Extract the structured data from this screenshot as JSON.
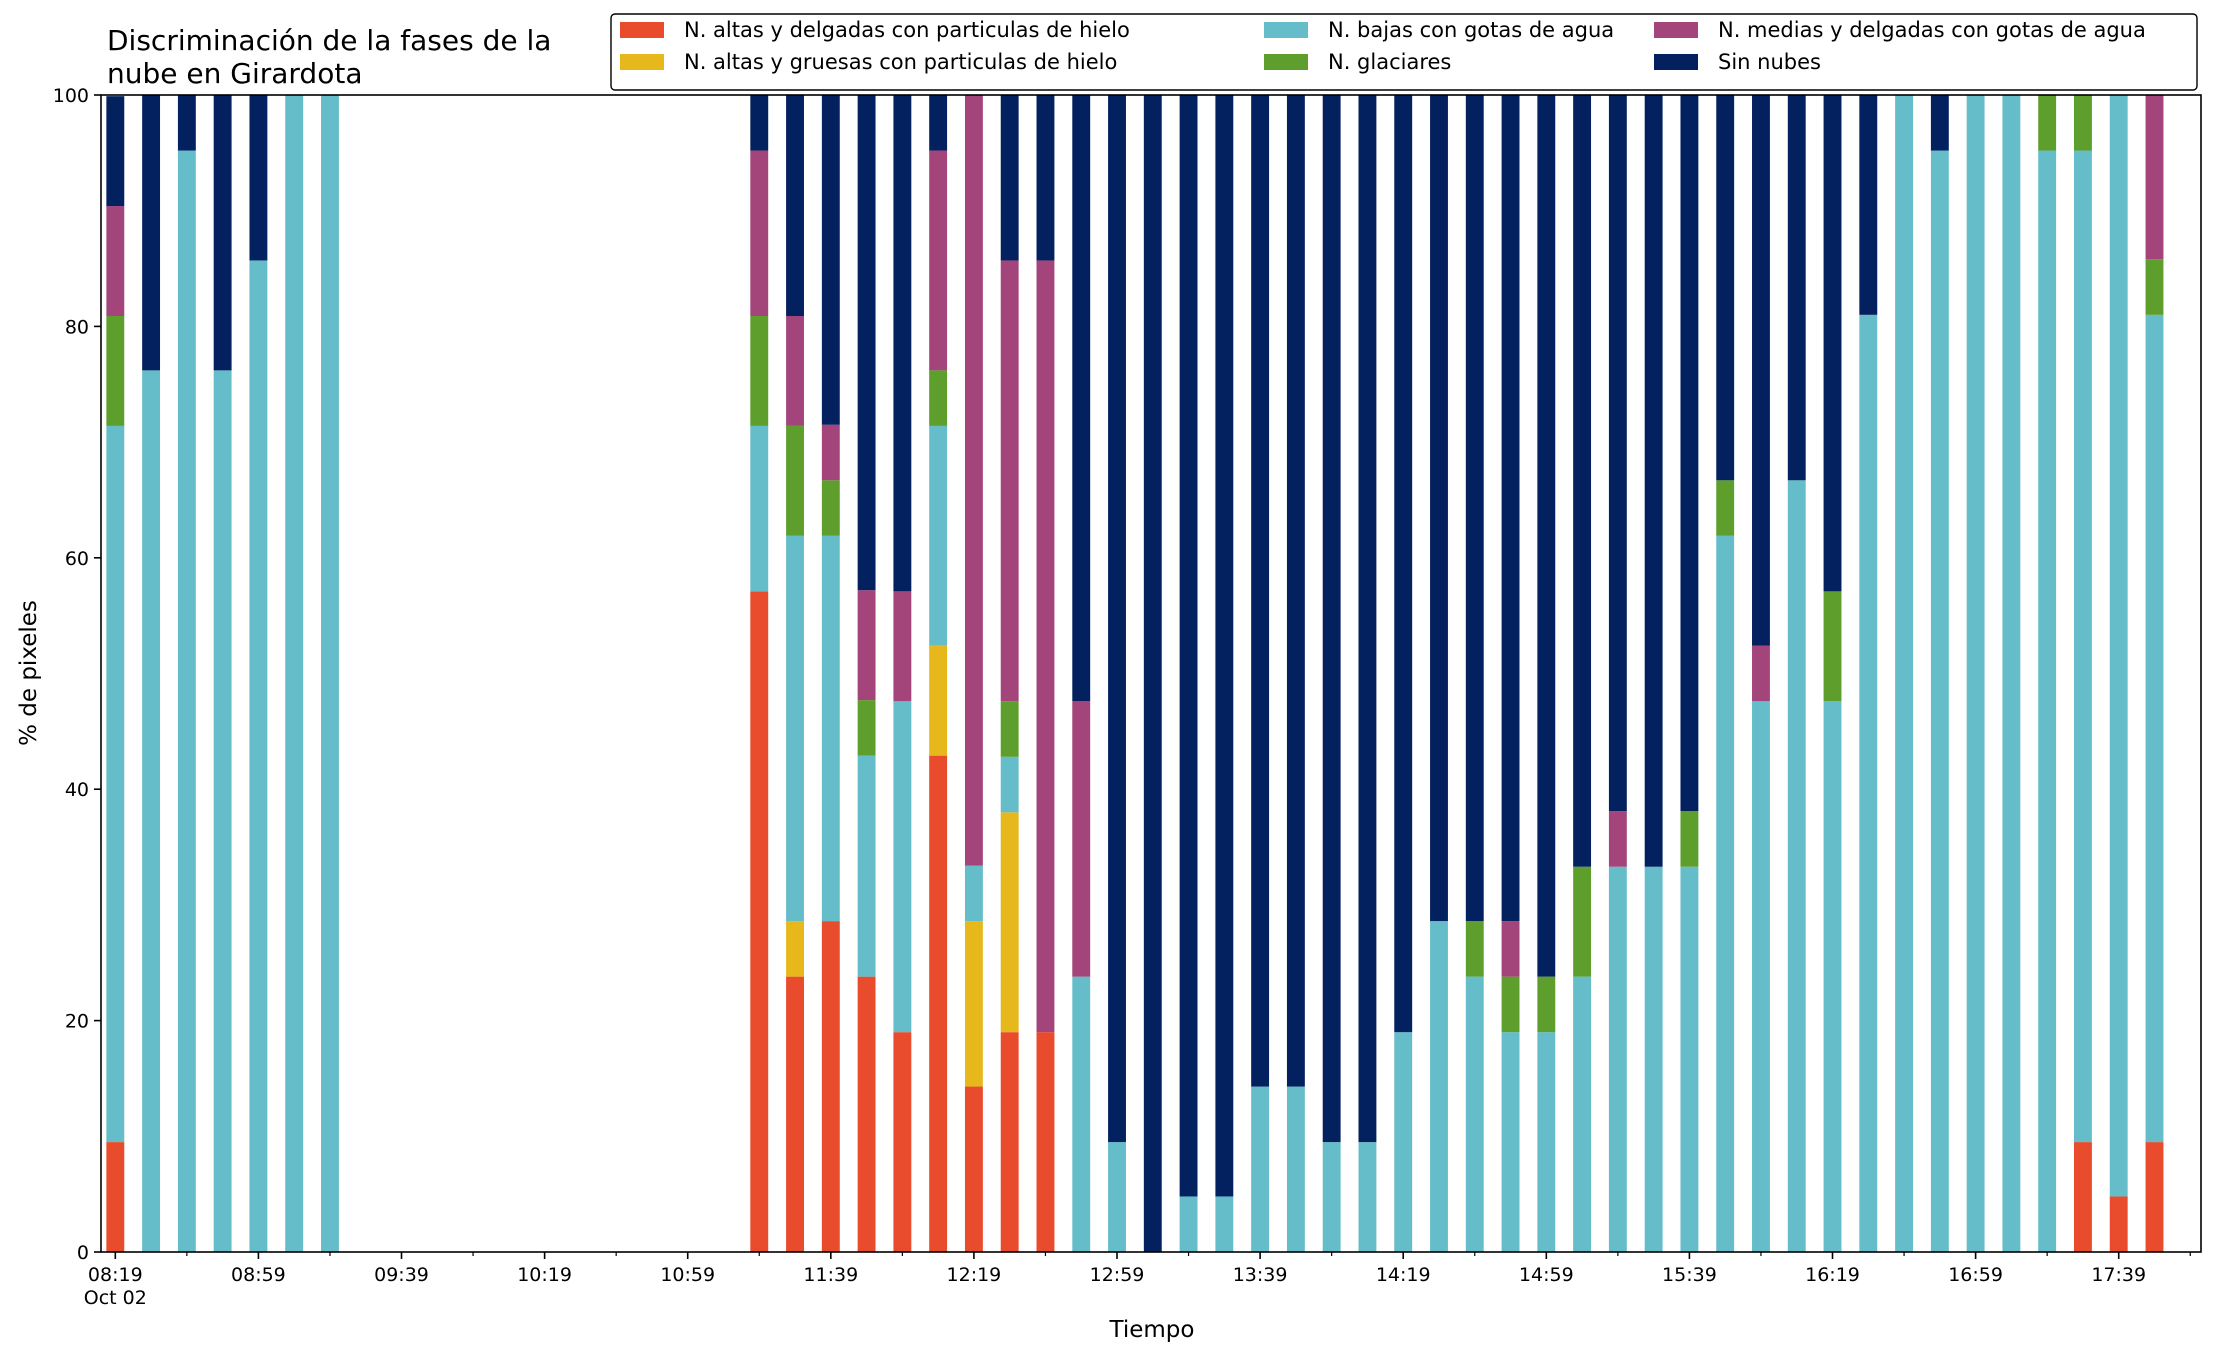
{
  "chart_data": {
    "type": "bar",
    "stacked": true,
    "title_lines": [
      "Discriminación de la fases de la",
      "nube en Girardota"
    ],
    "xlabel": "Tiempo",
    "ylabel": "% de pixeles",
    "ylim": [
      0,
      100
    ],
    "yticks": [
      "0",
      "20",
      "40",
      "60",
      "80",
      "100"
    ],
    "xlim_minutes": [
      495,
      1082
    ],
    "bar_step_minutes": 10,
    "bar_width_minutes": 5,
    "xtick_labels": [
      "08:19",
      "08:59",
      "09:39",
      "10:19",
      "10:59",
      "11:39",
      "12:19",
      "12:59",
      "13:39",
      "14:19",
      "14:59",
      "15:39",
      "16:19",
      "16:59",
      "17:39"
    ],
    "xtick_date": "Oct 02",
    "legend_position": "top-right",
    "series": [
      {
        "name": "N. altas y delgadas con particulas de hielo",
        "color": "#e94b2d"
      },
      {
        "name": "N. altas y gruesas con particulas de hielo",
        "color": "#e6b81c"
      },
      {
        "name": "N. bajas con gotas de agua",
        "color": "#66bdca"
      },
      {
        "name": "N. glaciares",
        "color": "#5e9e2c"
      },
      {
        "name": "N. medias y delgadas con gotas de agua",
        "color": "#a3457a"
      },
      {
        "name": "Sin nubes",
        "color": "#03215f"
      }
    ],
    "bars": [
      {
        "x": "08:19",
        "values": [
          9.5,
          0,
          61.9,
          9.5,
          9.5,
          9.5
        ]
      },
      {
        "x": "08:29",
        "values": [
          0,
          0,
          76.2,
          0,
          0,
          23.8
        ]
      },
      {
        "x": "08:39",
        "values": [
          0,
          0,
          95.2,
          0,
          0,
          4.8
        ]
      },
      {
        "x": "08:49",
        "values": [
          0,
          0,
          76.2,
          0,
          0,
          23.8
        ]
      },
      {
        "x": "08:59",
        "values": [
          0,
          0,
          85.7,
          0,
          0,
          14.3
        ]
      },
      {
        "x": "09:09",
        "values": [
          0,
          0,
          100,
          0,
          0,
          0
        ]
      },
      {
        "x": "09:19",
        "values": [
          0,
          0,
          100,
          0,
          0,
          0
        ]
      },
      {
        "x": "11:19",
        "values": [
          57.1,
          0,
          14.3,
          9.5,
          14.3,
          4.8
        ]
      },
      {
        "x": "11:29",
        "values": [
          23.8,
          4.8,
          33.3,
          9.5,
          9.5,
          19.1
        ]
      },
      {
        "x": "11:39",
        "values": [
          28.6,
          0,
          33.3,
          4.8,
          4.8,
          28.5
        ]
      },
      {
        "x": "11:49",
        "values": [
          23.8,
          0,
          19.1,
          4.8,
          9.5,
          42.8
        ]
      },
      {
        "x": "11:59",
        "values": [
          19.0,
          0,
          28.6,
          0,
          9.5,
          42.9
        ]
      },
      {
        "x": "12:09",
        "values": [
          42.9,
          9.5,
          19.0,
          4.8,
          19.0,
          4.8
        ]
      },
      {
        "x": "12:19",
        "values": [
          14.3,
          14.3,
          4.8,
          0,
          66.6,
          0
        ]
      },
      {
        "x": "12:29",
        "values": [
          19.0,
          19.0,
          4.8,
          4.8,
          38.1,
          14.3
        ]
      },
      {
        "x": "12:39",
        "values": [
          19.0,
          0,
          0,
          0,
          66.7,
          14.3
        ]
      },
      {
        "x": "12:49",
        "values": [
          0,
          0,
          23.8,
          0,
          23.8,
          52.4
        ]
      },
      {
        "x": "12:59",
        "values": [
          0,
          0,
          9.5,
          0,
          0,
          90.5
        ]
      },
      {
        "x": "13:09",
        "values": [
          0,
          0,
          0,
          0,
          0,
          100
        ]
      },
      {
        "x": "13:19",
        "values": [
          0,
          0,
          4.8,
          0,
          0,
          95.2
        ]
      },
      {
        "x": "13:29",
        "values": [
          0,
          0,
          4.8,
          0,
          0,
          95.2
        ]
      },
      {
        "x": "13:39",
        "values": [
          0,
          0,
          14.3,
          0,
          0,
          85.7
        ]
      },
      {
        "x": "13:49",
        "values": [
          0,
          0,
          14.3,
          0,
          0,
          85.7
        ]
      },
      {
        "x": "13:59",
        "values": [
          0,
          0,
          9.5,
          0,
          0,
          90.5
        ]
      },
      {
        "x": "14:09",
        "values": [
          0,
          0,
          9.5,
          0,
          0,
          90.5
        ]
      },
      {
        "x": "14:19",
        "values": [
          0,
          0,
          19.0,
          0,
          0,
          81.0
        ]
      },
      {
        "x": "14:29",
        "values": [
          0,
          0,
          28.6,
          0,
          0,
          71.4
        ]
      },
      {
        "x": "14:39",
        "values": [
          0,
          0,
          23.8,
          4.8,
          0,
          71.4
        ]
      },
      {
        "x": "14:49",
        "values": [
          0,
          0,
          19.0,
          4.8,
          4.8,
          71.4
        ]
      },
      {
        "x": "14:59",
        "values": [
          0,
          0,
          19.0,
          4.8,
          0,
          76.2
        ]
      },
      {
        "x": "15:09",
        "values": [
          0,
          0,
          23.8,
          9.5,
          0,
          66.7
        ]
      },
      {
        "x": "15:19",
        "values": [
          0,
          0,
          33.3,
          0,
          4.8,
          61.9
        ]
      },
      {
        "x": "15:29",
        "values": [
          0,
          0,
          33.3,
          0,
          0,
          66.7
        ]
      },
      {
        "x": "15:39",
        "values": [
          0,
          0,
          33.3,
          4.8,
          0,
          61.9
        ]
      },
      {
        "x": "15:49",
        "values": [
          0,
          0,
          61.9,
          4.8,
          0,
          33.3
        ]
      },
      {
        "x": "15:59",
        "values": [
          0,
          0,
          47.6,
          0,
          4.8,
          47.6
        ]
      },
      {
        "x": "16:09",
        "values": [
          0,
          0,
          66.7,
          0,
          0,
          33.3
        ]
      },
      {
        "x": "16:19",
        "values": [
          0,
          0,
          47.6,
          9.5,
          0,
          42.9
        ]
      },
      {
        "x": "16:29",
        "values": [
          0,
          0,
          81.0,
          0,
          0,
          19.0
        ]
      },
      {
        "x": "16:39",
        "values": [
          0,
          0,
          100,
          0,
          0,
          0
        ]
      },
      {
        "x": "16:49",
        "values": [
          0,
          0,
          95.2,
          0,
          0,
          4.8
        ]
      },
      {
        "x": "16:59",
        "values": [
          0,
          0,
          100,
          0,
          0,
          0
        ]
      },
      {
        "x": "17:09",
        "values": [
          0,
          0,
          100,
          0,
          0,
          0
        ]
      },
      {
        "x": "17:19",
        "values": [
          0,
          0,
          95.2,
          4.8,
          0,
          0
        ]
      },
      {
        "x": "17:29",
        "values": [
          9.5,
          0,
          85.7,
          4.8,
          0,
          0
        ]
      },
      {
        "x": "17:39",
        "values": [
          4.8,
          0,
          95.2,
          0,
          0,
          0
        ]
      },
      {
        "x": "17:49",
        "values": [
          9.5,
          0,
          71.5,
          4.8,
          14.2,
          0
        ]
      }
    ]
  }
}
